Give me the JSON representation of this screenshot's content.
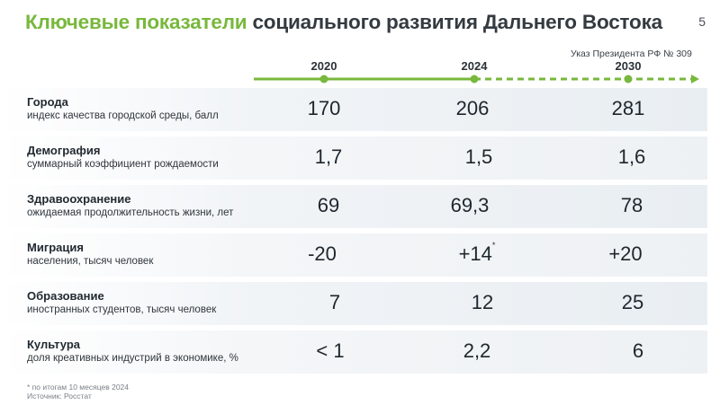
{
  "header": {
    "title_accent": "Ключевые показатели",
    "title_rest": "социального развития Дальнего Востока",
    "page_number": "5"
  },
  "timeline": {
    "decree": "Указ Президента РФ № 309",
    "years": [
      "2020",
      "2024",
      "2030"
    ],
    "colors": {
      "line": "#78b83c"
    }
  },
  "rows": [
    {
      "category": "Города",
      "subtitle": "индекс качества городской среды, балл",
      "v2020": "170",
      "v2024": "206",
      "v2024_note": "",
      "v2030": "281"
    },
    {
      "category": "Демография",
      "subtitle": "суммарный коэффициент рождаемости",
      "v2020": "1,7",
      "v2024": "1,5",
      "v2024_note": "",
      "v2030": "1,6"
    },
    {
      "category": "Здравоохранение",
      "subtitle": "ожидаемая продолжительность жизни, лет",
      "v2020": "69",
      "v2024": "69,3",
      "v2024_note": "",
      "v2030": "78"
    },
    {
      "category": "Миграция",
      "subtitle": "населения, тысяч человек",
      "v2020": "-20",
      "v2024": "+14",
      "v2024_note": "*",
      "v2030": "+20"
    },
    {
      "category": "Образование",
      "subtitle": "иностранных студентов, тысяч человек",
      "v2020": "7",
      "v2024": "12",
      "v2024_note": "",
      "v2030": "25"
    },
    {
      "category": "Культура",
      "subtitle": "доля креативных индустрий в экономике, %",
      "v2020": "< 1",
      "v2024": "2,2",
      "v2024_note": "",
      "v2030": "6"
    }
  ],
  "footnote": {
    "line1": "* по итогам 10 месяцев 2024",
    "line2": "Источник: Росстат"
  }
}
